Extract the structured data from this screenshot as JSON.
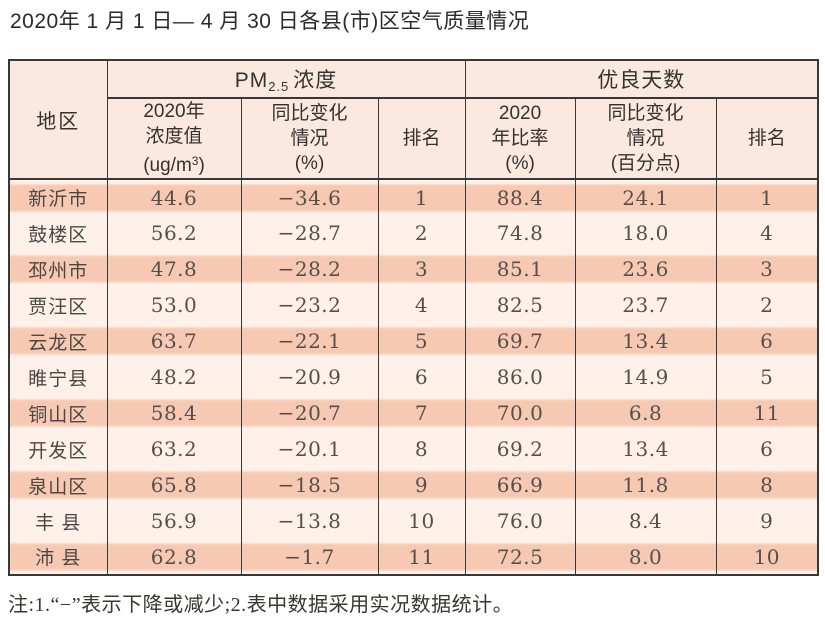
{
  "title": "2020年 1 月 1 日— 4 月 30 日各县(市)区空气质量情况",
  "note": "注:1.“−”表示下降或减少;2.表中数据采用实况数据统计。",
  "colors": {
    "row_highlight": "#f7c9b2",
    "row_light": "#fdf1ea",
    "header_bg": "#fbe9e0",
    "grid_line": "#383838"
  },
  "table": {
    "headers": {
      "region": "地区",
      "pm_group": {
        "prefix": "PM",
        "sub": "2.5",
        "suffix": "浓度"
      },
      "days_group": "优良天数",
      "pm_value": {
        "line1": "2020年",
        "line2": "浓度值",
        "unit_prefix": "(ug/m",
        "unit_sup": "3",
        "unit_suffix": ")"
      },
      "pm_change": {
        "line1": "同比变化",
        "line2": "情况",
        "line3": "(%)"
      },
      "pm_rank": "排名",
      "days_rate": {
        "line1": "2020",
        "line2": "年比率",
        "line3": "(%)"
      },
      "days_change": {
        "line1": "同比变化",
        "line2": "情况",
        "line3": "(百分点)"
      },
      "days_rank": "排名"
    },
    "rows": [
      {
        "region": "新沂市",
        "pm_value": "44.6",
        "pm_change": "−34.6",
        "pm_rank": "1",
        "days_rate": "88.4",
        "days_change": "24.1",
        "days_rank": "1"
      },
      {
        "region": "鼓楼区",
        "pm_value": "56.2",
        "pm_change": "−28.7",
        "pm_rank": "2",
        "days_rate": "74.8",
        "days_change": "18.0",
        "days_rank": "4"
      },
      {
        "region": "邳州市",
        "pm_value": "47.8",
        "pm_change": "−28.2",
        "pm_rank": "3",
        "days_rate": "85.1",
        "days_change": "23.6",
        "days_rank": "3"
      },
      {
        "region": "贾汪区",
        "pm_value": "53.0",
        "pm_change": "−23.2",
        "pm_rank": "4",
        "days_rate": "82.5",
        "days_change": "23.7",
        "days_rank": "2"
      },
      {
        "region": "云龙区",
        "pm_value": "63.7",
        "pm_change": "−22.1",
        "pm_rank": "5",
        "days_rate": "69.7",
        "days_change": "13.4",
        "days_rank": "6"
      },
      {
        "region": "睢宁县",
        "pm_value": "48.2",
        "pm_change": "−20.9",
        "pm_rank": "6",
        "days_rate": "86.0",
        "days_change": "14.9",
        "days_rank": "5"
      },
      {
        "region": "铜山区",
        "pm_value": "58.4",
        "pm_change": "−20.7",
        "pm_rank": "7",
        "days_rate": "70.0",
        "days_change": "6.8",
        "days_rank": "11"
      },
      {
        "region": "开发区",
        "pm_value": "63.2",
        "pm_change": "−20.1",
        "pm_rank": "8",
        "days_rate": "69.2",
        "days_change": "13.4",
        "days_rank": "6"
      },
      {
        "region": "泉山区",
        "pm_value": "65.8",
        "pm_change": "−18.5",
        "pm_rank": "9",
        "days_rate": "66.9",
        "days_change": "11.8",
        "days_rank": "8"
      },
      {
        "region": "丰 县",
        "pm_value": "56.9",
        "pm_change": "−13.8",
        "pm_rank": "10",
        "days_rate": "76.0",
        "days_change": "8.4",
        "days_rank": "9"
      },
      {
        "region": "沛 县",
        "pm_value": "62.8",
        "pm_change": "−1.7",
        "pm_rank": "11",
        "days_rate": "72.5",
        "days_change": "8.0",
        "days_rank": "10"
      }
    ]
  }
}
